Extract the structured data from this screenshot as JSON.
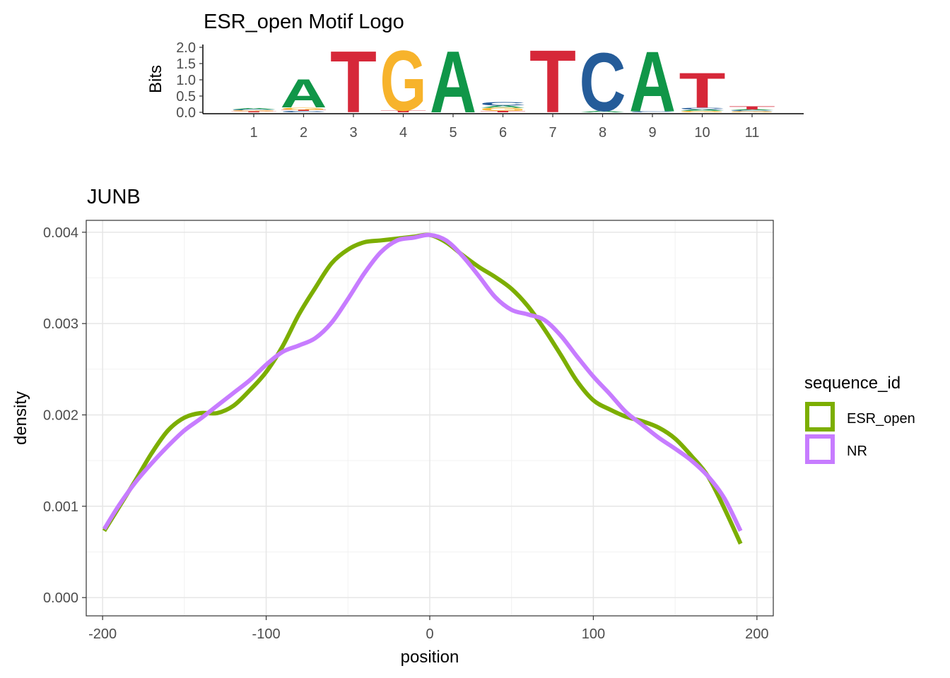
{
  "chart_data": [
    {
      "type": "sequence-logo",
      "title": "ESR_open Motif Logo",
      "ylabel": "Bits",
      "ylim": [
        0,
        2
      ],
      "yticks": [
        "0.0",
        "0.5",
        "1.0",
        "1.5",
        "2.0"
      ],
      "positions": [
        "1",
        "2",
        "3",
        "4",
        "5",
        "6",
        "7",
        "8",
        "9",
        "10",
        "11"
      ],
      "colors": {
        "A": "#109648",
        "C": "#255C99",
        "G": "#F7B32B",
        "T": "#D62839"
      },
      "stacks": [
        [
          {
            "letter": "T",
            "bits": 0.03
          },
          {
            "letter": "G",
            "bits": 0.03
          },
          {
            "letter": "C",
            "bits": 0.03
          },
          {
            "letter": "A",
            "bits": 0.04
          }
        ],
        [
          {
            "letter": "C",
            "bits": 0.04
          },
          {
            "letter": "T",
            "bits": 0.04
          },
          {
            "letter": "G",
            "bits": 0.07
          },
          {
            "letter": "A",
            "bits": 0.9
          }
        ],
        [
          {
            "letter": "T",
            "bits": 1.95
          }
        ],
        [
          {
            "letter": "T",
            "bits": 0.05
          },
          {
            "letter": "G",
            "bits": 1.9
          }
        ],
        [
          {
            "letter": "A",
            "bits": 1.95
          }
        ],
        [
          {
            "letter": "T",
            "bits": 0.04
          },
          {
            "letter": "G",
            "bits": 0.1
          },
          {
            "letter": "A",
            "bits": 0.07
          },
          {
            "letter": "C",
            "bits": 0.12
          }
        ],
        [
          {
            "letter": "T",
            "bits": 1.98
          }
        ],
        [
          {
            "letter": "A",
            "bits": 0.04
          },
          {
            "letter": "C",
            "bits": 1.85
          }
        ],
        [
          {
            "letter": "C",
            "bits": 0.03
          },
          {
            "letter": "A",
            "bits": 1.9
          }
        ],
        [
          {
            "letter": "G",
            "bits": 0.04
          },
          {
            "letter": "A",
            "bits": 0.05
          },
          {
            "letter": "C",
            "bits": 0.06
          },
          {
            "letter": "T",
            "bits": 1.1
          }
        ],
        [
          {
            "letter": "G",
            "bits": 0.03
          },
          {
            "letter": "C",
            "bits": 0.03
          },
          {
            "letter": "A",
            "bits": 0.03
          },
          {
            "letter": "T",
            "bits": 0.1
          }
        ]
      ]
    },
    {
      "type": "line",
      "title": "JUNB",
      "xlabel": "position",
      "ylabel": "density",
      "xlim": [
        -210,
        210
      ],
      "ylim": [
        -0.0002,
        0.00413
      ],
      "xticks": [
        -200,
        -100,
        0,
        100,
        200
      ],
      "xtick_labels": [
        "-200",
        "-100",
        "0",
        "100",
        "200"
      ],
      "yticks": [
        0,
        0.001,
        0.002,
        0.003,
        0.004
      ],
      "ytick_labels": [
        "0.000",
        "0.001",
        "0.002",
        "0.003",
        "0.004"
      ],
      "grid": true,
      "legend_title": "sequence_id",
      "legend_position": "right",
      "series": [
        {
          "name": "ESR_open",
          "color": "#7CAE00",
          "x": [
            -199,
            -190,
            -180,
            -170,
            -160,
            -150,
            -140,
            -130,
            -120,
            -110,
            -100,
            -90,
            -80,
            -70,
            -60,
            -50,
            -40,
            -30,
            -20,
            -10,
            0,
            10,
            20,
            30,
            40,
            50,
            60,
            70,
            80,
            90,
            100,
            110,
            120,
            130,
            140,
            150,
            160,
            170,
            180,
            190
          ],
          "y": [
            0.00073,
            0.00099,
            0.00128,
            0.00158,
            0.00183,
            0.00197,
            0.00202,
            0.00202,
            0.0021,
            0.00227,
            0.00247,
            0.00275,
            0.0031,
            0.00339,
            0.00366,
            0.00381,
            0.00389,
            0.00391,
            0.00393,
            0.00395,
            0.00397,
            0.00389,
            0.00375,
            0.00362,
            0.00351,
            0.00338,
            0.00319,
            0.00294,
            0.00266,
            0.00237,
            0.00216,
            0.00206,
            0.00198,
            0.00193,
            0.00186,
            0.00174,
            0.00155,
            0.00133,
            0.00098,
            0.00059
          ]
        },
        {
          "name": "NR",
          "color": "#C77CFF",
          "x": [
            -199,
            -190,
            -180,
            -170,
            -160,
            -150,
            -140,
            -130,
            -120,
            -110,
            -100,
            -90,
            -80,
            -70,
            -60,
            -50,
            -40,
            -30,
            -20,
            -10,
            0,
            10,
            20,
            30,
            40,
            50,
            60,
            70,
            80,
            90,
            100,
            110,
            120,
            130,
            140,
            150,
            160,
            170,
            180,
            190
          ],
          "y": [
            0.00075,
            0.00101,
            0.00126,
            0.00147,
            0.00166,
            0.00183,
            0.00196,
            0.0021,
            0.00224,
            0.00238,
            0.00255,
            0.00269,
            0.00276,
            0.00284,
            0.00301,
            0.00327,
            0.00355,
            0.00378,
            0.00391,
            0.00394,
            0.00397,
            0.00391,
            0.00374,
            0.00352,
            0.00329,
            0.00315,
            0.0031,
            0.00304,
            0.00287,
            0.00264,
            0.00242,
            0.00223,
            0.00203,
            0.00189,
            0.00175,
            0.00163,
            0.0015,
            0.00133,
            0.00109,
            0.00073
          ]
        }
      ]
    }
  ]
}
